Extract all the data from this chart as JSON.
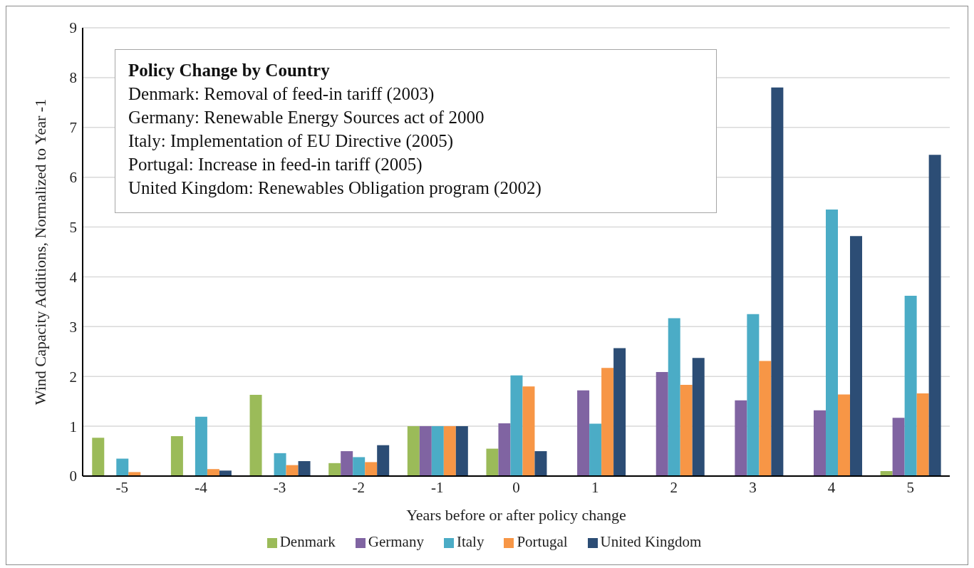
{
  "chart_data": {
    "type": "bar",
    "xlabel": "Years before or after policy change",
    "ylabel": "Wind Capacity Additions, Normalized to Year -1",
    "categories": [
      "-5",
      "-4",
      "-3",
      "-2",
      "-1",
      "0",
      "1",
      "2",
      "3",
      "4",
      "5"
    ],
    "series": [
      {
        "name": "Denmark",
        "color": "#9bbb59",
        "values": [
          0.77,
          0.8,
          1.63,
          0.26,
          1,
          0.55,
          null,
          null,
          null,
          null,
          0.1
        ]
      },
      {
        "name": "Germany",
        "color": "#8064a2",
        "values": [
          null,
          null,
          null,
          0.5,
          1,
          1.06,
          1.72,
          2.09,
          1.52,
          1.32,
          1.17
        ]
      },
      {
        "name": "Italy",
        "color": "#4bacc6",
        "values": [
          0.35,
          1.19,
          0.46,
          0.38,
          1,
          2.02,
          1.05,
          3.17,
          3.25,
          5.35,
          3.62
        ]
      },
      {
        "name": "Portugal",
        "color": "#f79646",
        "values": [
          0.08,
          0.14,
          0.22,
          0.28,
          1,
          1.8,
          2.17,
          1.83,
          2.31,
          1.64,
          1.66
        ]
      },
      {
        "name": "United Kingdom",
        "color": "#2c4d75",
        "values": [
          null,
          0.11,
          0.3,
          0.62,
          1,
          0.5,
          2.57,
          2.37,
          7.8,
          4.82,
          6.45
        ]
      }
    ],
    "ylim": [
      0,
      9
    ],
    "yticks": [
      0,
      1,
      2,
      3,
      4,
      5,
      6,
      7,
      8,
      9
    ],
    "grid": "y",
    "legend": "bottom",
    "annotations": [
      "Policy Change by Country",
      "Denmark: Removal of feed-in tariff (2003)",
      "Germany: Renewable Energy Sources act of 2000",
      "Italy: Implementation of EU Directive (2005)",
      "Portugal: Increase in feed-in tariff (2005)",
      "United Kingdom: Renewables Obligation program (2002)"
    ]
  }
}
